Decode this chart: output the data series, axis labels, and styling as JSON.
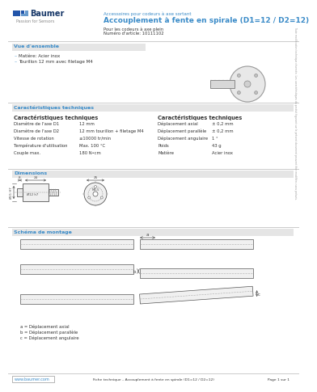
{
  "logo_text": "Baumer",
  "logo_sub": "Passion for Sensors",
  "header_sub": "Accessoires pour codeurs à axe sortant",
  "header_title": "Accouplement à fente en spirale (D1=12 / D2=12)",
  "header_desc1": "Pour les codeurs à axe plein",
  "header_desc2": "Numéro d'article: 10111102",
  "section1_title": "Vue d'ensemble",
  "bullet1": "Matière: Acier inox",
  "bullet2": "Tourillon 12 mm avec filetage M4",
  "section2_title": "Caractéristiques techniques",
  "col1_header": "Caractéristiques techniques",
  "col2_header": "Caractéristiques techniques",
  "tech_left": [
    [
      "Diamètre de l'axe D1",
      "12 mm"
    ],
    [
      "Diamètre de l'axe D2",
      "12 mm tourillon + filetage M4"
    ],
    [
      "Vitesse de rotation",
      "≤10000 tr/min"
    ],
    [
      "Température d'utilisation",
      "Max. 100 °C"
    ],
    [
      "Couple max.",
      "180 N•cm"
    ]
  ],
  "tech_right": [
    [
      "Déplacement axial",
      "± 0,2 mm"
    ],
    [
      "Déplacement parallèle",
      "± 0,2 mm"
    ],
    [
      "Déplacement angulaire",
      "1 °"
    ],
    [
      "Poids",
      "43 g"
    ],
    [
      "Matière",
      "Acier inox"
    ]
  ],
  "section3_title": "Dimensions",
  "section4_title": "Schéma de montage",
  "legend_a": "a = Déplacement axial",
  "legend_b": "b = Déplacement parallèle",
  "legend_c": "c = Déplacement angulaire",
  "footer_url": "www.baumer.com",
  "footer_text": "Fiche technique – Accouplement à fente en spirale (D1=12 / D2=12)",
  "footer_page": "Page 1 sur 1",
  "blue_color": "#3A8BC8",
  "gray_header": "#E5E5E5",
  "gray_border": "#CCCCCC",
  "text_color": "#333333",
  "sidebar_text": "Toute modification technique réservée. Les caractéristiques du produit figurant sur le présent document peuvent être modifiées sans préavis."
}
